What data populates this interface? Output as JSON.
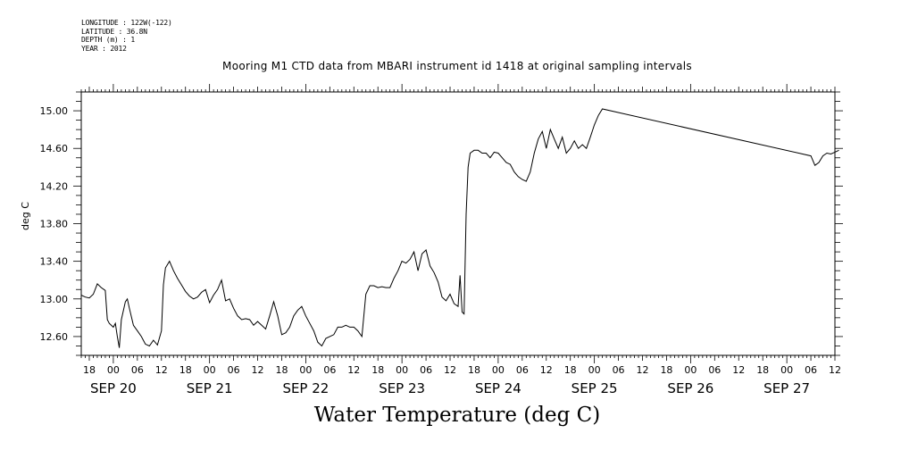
{
  "header": {
    "longitude": "LONGITUDE : 122W(-122)",
    "latitude": "LATITUDE : 36.8N",
    "depth": "DEPTH (m) : 1",
    "year": "YEAR : 2012"
  },
  "chart_data": {
    "type": "line",
    "title": "Mooring M1 CTD data from MBARI instrument id 1418 at original sampling intervals",
    "ylabel": "deg C",
    "xlabel": "Water Temperature (deg C)",
    "x_unit": "hours since SEP 20 00:00",
    "xlim": [
      -8,
      180
    ],
    "ylim": [
      12.4,
      15.2
    ],
    "y_ticks": [
      "15.00",
      "14.60",
      "14.20",
      "13.80",
      "13.40",
      "13.00",
      "12.60"
    ],
    "y_tick_values": [
      15.0,
      14.6,
      14.2,
      13.8,
      13.4,
      13.0,
      12.6
    ],
    "x_hour_ticks": [
      "18",
      "00",
      "06",
      "12",
      "18",
      "00",
      "06",
      "12",
      "18",
      "00",
      "06",
      "12",
      "18",
      "00",
      "06",
      "12",
      "18",
      "00",
      "06",
      "12",
      "18",
      "00",
      "06",
      "12",
      "18",
      "00",
      "06",
      "12",
      "18",
      "00",
      "06",
      "12"
    ],
    "x_hour_values": [
      -6,
      0,
      6,
      12,
      18,
      24,
      30,
      36,
      42,
      48,
      54,
      60,
      66,
      72,
      78,
      84,
      90,
      96,
      102,
      108,
      114,
      120,
      126,
      132,
      138,
      144,
      150,
      156,
      162,
      168,
      174,
      180
    ],
    "x_day_labels": [
      "SEP 20",
      "SEP 21",
      "SEP 22",
      "SEP 23",
      "SEP 24",
      "SEP 25",
      "SEP 26",
      "SEP 27"
    ],
    "x_day_values": [
      0,
      24,
      48,
      72,
      96,
      120,
      144,
      168
    ],
    "series": [
      {
        "points": [
          [
            -8,
            13.04
          ],
          [
            -7,
            13.02
          ],
          [
            -6,
            13.01
          ],
          [
            -5,
            13.05
          ],
          [
            -4,
            13.16
          ],
          [
            -3,
            13.12
          ],
          [
            -2,
            13.09
          ],
          [
            -1.5,
            12.78
          ],
          [
            -1,
            12.74
          ],
          [
            0,
            12.7
          ],
          [
            0.5,
            12.74
          ],
          [
            1,
            12.6
          ],
          [
            1.5,
            12.48
          ],
          [
            2,
            12.78
          ],
          [
            3,
            12.97
          ],
          [
            3.5,
            13.0
          ],
          [
            4,
            12.9
          ],
          [
            5,
            12.72
          ],
          [
            6,
            12.66
          ],
          [
            7,
            12.6
          ],
          [
            8,
            12.52
          ],
          [
            9,
            12.5
          ],
          [
            10,
            12.56
          ],
          [
            11,
            12.51
          ],
          [
            12,
            12.66
          ],
          [
            12.5,
            13.15
          ],
          [
            13,
            13.33
          ],
          [
            14,
            13.4
          ],
          [
            15,
            13.3
          ],
          [
            16,
            13.22
          ],
          [
            17,
            13.15
          ],
          [
            18,
            13.08
          ],
          [
            19,
            13.03
          ],
          [
            20,
            13.0
          ],
          [
            21,
            13.02
          ],
          [
            22,
            13.07
          ],
          [
            23,
            13.1
          ],
          [
            24,
            12.96
          ],
          [
            25,
            13.04
          ],
          [
            26,
            13.1
          ],
          [
            27,
            13.2
          ],
          [
            28,
            12.98
          ],
          [
            29,
            13.0
          ],
          [
            30,
            12.9
          ],
          [
            31,
            12.82
          ],
          [
            32,
            12.78
          ],
          [
            33,
            12.79
          ],
          [
            34,
            12.78
          ],
          [
            35,
            12.72
          ],
          [
            36,
            12.76
          ],
          [
            37,
            12.72
          ],
          [
            38,
            12.68
          ],
          [
            39,
            12.82
          ],
          [
            40,
            12.97
          ],
          [
            41,
            12.82
          ],
          [
            42,
            12.62
          ],
          [
            43,
            12.64
          ],
          [
            44,
            12.7
          ],
          [
            45,
            12.82
          ],
          [
            46,
            12.88
          ],
          [
            47,
            12.92
          ],
          [
            48,
            12.82
          ],
          [
            49,
            12.74
          ],
          [
            50,
            12.66
          ],
          [
            51,
            12.54
          ],
          [
            52,
            12.5
          ],
          [
            53,
            12.58
          ],
          [
            54,
            12.6
          ],
          [
            55,
            12.62
          ],
          [
            56,
            12.7
          ],
          [
            57,
            12.7
          ],
          [
            58,
            12.72
          ],
          [
            59,
            12.7
          ],
          [
            60,
            12.7
          ],
          [
            61,
            12.66
          ],
          [
            62,
            12.6
          ],
          [
            63,
            13.05
          ],
          [
            64,
            13.14
          ],
          [
            65,
            13.14
          ],
          [
            66,
            13.12
          ],
          [
            67,
            13.13
          ],
          [
            68,
            13.12
          ],
          [
            69,
            13.12
          ],
          [
            70,
            13.22
          ],
          [
            71,
            13.3
          ],
          [
            72,
            13.4
          ],
          [
            73,
            13.38
          ],
          [
            74,
            13.42
          ],
          [
            75,
            13.5
          ],
          [
            76,
            13.3
          ],
          [
            77,
            13.48
          ],
          [
            78,
            13.52
          ],
          [
            79,
            13.35
          ],
          [
            80,
            13.28
          ],
          [
            81,
            13.18
          ],
          [
            82,
            13.02
          ],
          [
            83,
            12.98
          ],
          [
            84,
            13.05
          ],
          [
            85,
            12.95
          ],
          [
            86,
            12.92
          ],
          [
            86.5,
            13.25
          ],
          [
            87,
            12.86
          ],
          [
            87.5,
            12.84
          ],
          [
            88,
            13.9
          ],
          [
            88.5,
            14.4
          ],
          [
            89,
            14.55
          ],
          [
            90,
            14.58
          ],
          [
            91,
            14.58
          ],
          [
            92,
            14.55
          ],
          [
            93,
            14.55
          ],
          [
            94,
            14.5
          ],
          [
            95,
            14.56
          ],
          [
            96,
            14.55
          ],
          [
            97,
            14.5
          ],
          [
            98,
            14.45
          ],
          [
            99,
            14.43
          ],
          [
            100,
            14.35
          ],
          [
            101,
            14.3
          ],
          [
            102,
            14.27
          ],
          [
            103,
            14.25
          ],
          [
            104,
            14.35
          ],
          [
            105,
            14.55
          ],
          [
            106,
            14.7
          ],
          [
            107,
            14.78
          ],
          [
            108,
            14.6
          ],
          [
            109,
            14.8
          ],
          [
            110,
            14.7
          ],
          [
            111,
            14.6
          ],
          [
            112,
            14.72
          ],
          [
            113,
            14.55
          ],
          [
            114,
            14.6
          ],
          [
            115,
            14.68
          ],
          [
            116,
            14.6
          ],
          [
            117,
            14.64
          ],
          [
            118,
            14.6
          ],
          [
            119,
            14.72
          ],
          [
            120,
            14.85
          ],
          [
            121,
            14.95
          ],
          [
            122,
            15.02
          ],
          [
            174,
            14.52
          ],
          [
            175,
            14.42
          ],
          [
            176,
            14.45
          ],
          [
            177,
            14.52
          ],
          [
            178,
            14.55
          ],
          [
            179,
            14.54
          ],
          [
            180,
            14.56
          ],
          [
            181,
            14.58
          ]
        ]
      }
    ],
    "grid": false
  }
}
